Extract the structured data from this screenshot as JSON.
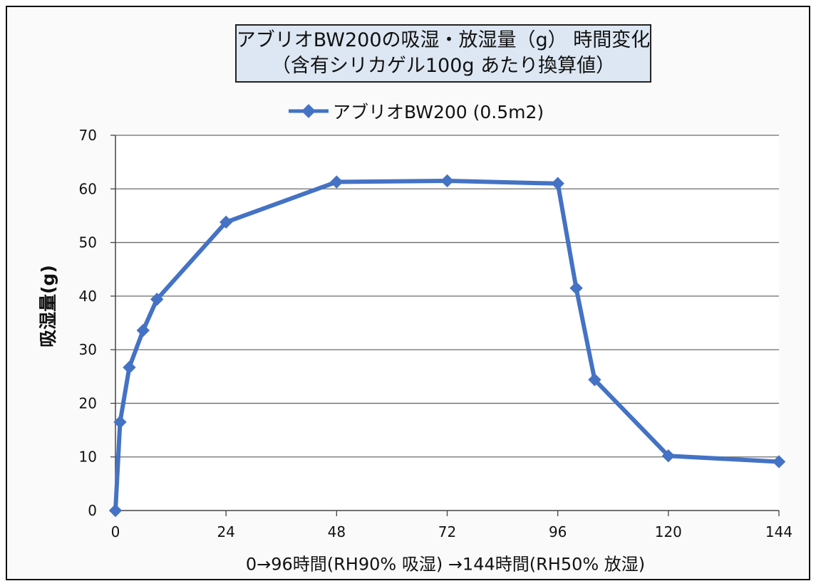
{
  "chart_data": {
    "type": "line",
    "title_lines": [
      "アブリオBW200の吸湿・放湿量（g） 時間変化",
      "（含有シリカゲル100g あたり換算値）"
    ],
    "xlabel": "0→96時間(RH90% 吸湿) →144時間(RH50% 放湿)",
    "ylabel": "吸湿量(g)",
    "xlim": [
      0,
      144
    ],
    "ylim": [
      0,
      70
    ],
    "x_ticks": [
      "0",
      "24",
      "48",
      "72",
      "96",
      "120",
      "144"
    ],
    "y_ticks": [
      "0",
      "10",
      "20",
      "30",
      "40",
      "50",
      "60",
      "70"
    ],
    "grid": "horizontal",
    "legend_position": "top-center",
    "series": [
      {
        "name": "アブリオBW200 (0.5m2)",
        "color": "#4472c4",
        "x": [
          0,
          1,
          3,
          6,
          9,
          24,
          48,
          72,
          96,
          100,
          104,
          120,
          144
        ],
        "y": [
          0,
          16.5,
          26.7,
          33.6,
          39.4,
          53.8,
          61.3,
          61.5,
          61.0,
          41.5,
          24.4,
          10.2,
          9.1
        ]
      }
    ]
  }
}
